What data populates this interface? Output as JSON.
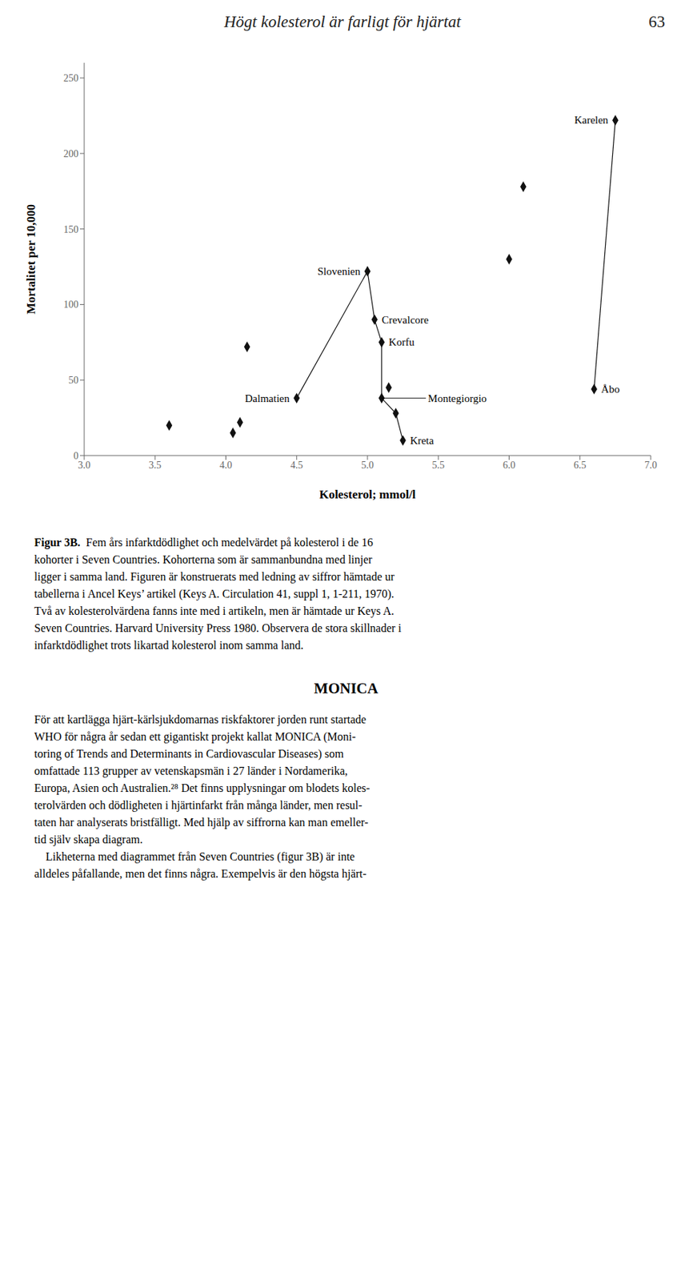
{
  "chart_data": {
    "type": "scatter",
    "title": "Högt kolesterol är farligt för hjärtat",
    "page_number": "63",
    "xlabel": "Kolesterol; mmol/l",
    "ylabel": "Mortalitet per 10,000",
    "xlim": [
      3,
      7
    ],
    "ylim": [
      0,
      260
    ],
    "xticks": [
      {
        "value": 3,
        "label": "3.0"
      },
      {
        "value": 3.5,
        "label": "3.5"
      },
      {
        "value": 4,
        "label": "4.0"
      },
      {
        "value": 4.5,
        "label": "4.5"
      },
      {
        "value": 5,
        "label": "5.0"
      },
      {
        "value": 5.5,
        "label": "5.5"
      },
      {
        "value": 6,
        "label": "6.0"
      },
      {
        "value": 6.5,
        "label": "6.5"
      },
      {
        "value": 7,
        "label": "7.0"
      }
    ],
    "yticks": [
      0,
      50,
      100,
      150,
      200,
      250
    ],
    "grid": false,
    "color": "#111111",
    "marker": "diamond",
    "x": [
      3.6,
      4.05,
      4.1,
      4.15,
      4.5,
      5.0,
      5.05,
      5.1,
      5.1,
      5.15,
      5.2,
      5.25,
      6.0,
      6.1,
      6.6,
      6.75
    ],
    "values": [
      20,
      15,
      22,
      72,
      38,
      122,
      90,
      75,
      38,
      45,
      28,
      10,
      130,
      178,
      44,
      222
    ],
    "lines": [
      {
        "x": [
          4.5,
          5.0,
          5.05,
          5.1,
          5.1,
          5.2,
          5.25
        ],
        "values": [
          38,
          122,
          90,
          75,
          38,
          28,
          10
        ]
      },
      {
        "x": [
          6.6,
          6.75
        ],
        "values": [
          44,
          222
        ]
      }
    ],
    "annotations": [
      {
        "text": "Slovenien",
        "x": 5.0,
        "y": 122,
        "position": "left"
      },
      {
        "text": "Crevalcore",
        "x": 5.05,
        "y": 90,
        "position": "right"
      },
      {
        "text": "Korfu",
        "x": 5.1,
        "y": 75,
        "position": "right"
      },
      {
        "text": "Kreta",
        "x": 5.25,
        "y": 10,
        "position": "right"
      },
      {
        "text": "Dalmatien",
        "x": 4.5,
        "y": 38,
        "position": "left"
      },
      {
        "text": "Åbo",
        "x": 6.6,
        "y": 44,
        "position": "right"
      },
      {
        "text": "Karelen",
        "x": 6.75,
        "y": 222,
        "position": "left"
      },
      {
        "text": "Montegiorgio",
        "x": 5.1,
        "y": 38,
        "position": "right",
        "arrow": true
      }
    ],
    "caption_label": "Figur 3B.",
    "caption_lines": [
      "  Fem års infarktdödlighet och medelvärdet på kolesterol i de 16",
      "kohorter i Seven Countries. Kohorterna som är sammanbundna med linjer",
      "ligger i samma land. Figuren är konstruerats med ledning av siffror hämtade ur",
      "tabellerna i Ancel Keys’ artikel (Keys A. Circulation 41, suppl 1, 1-211, 1970).",
      "Två av kolesterolvärdena fanns inte med i artikeln, men är hämtade ur Keys A.",
      "Seven Countries. Harvard University Press 1980. Observera de stora skillnader i",
      "infarktdödlighet trots likartad kolesterol inom samma land."
    ],
    "heading": "MONICA",
    "body_lines": [
      "För att kartlägga hjärt-kärlsjukdomarnas riskfaktorer jorden runt startade",
      "WHO för några år sedan ett gigantiskt projekt kallat MONICA (Moni-",
      "toring of Trends and Determinants in Cardiovascular Diseases) som",
      "omfattade 113 grupper av vetenskapsmän i 27 länder i Nordamerika,",
      "Europa, Asien och Australien.²⁸ Det finns upplysningar om blodets koles-",
      "terolvärden och dödligheten i hjärtinfarkt från många länder, men resul-",
      "taten har analyserats bristfälligt. Med hjälp av siffrorna kan man emeller-",
      "tid själv skapa diagram.",
      "    Likheterna med diagrammet från Seven Countries (figur 3B) är inte",
      "alldeles påfallande, men det finns några. Exempelvis är den högsta hjärt-"
    ]
  }
}
